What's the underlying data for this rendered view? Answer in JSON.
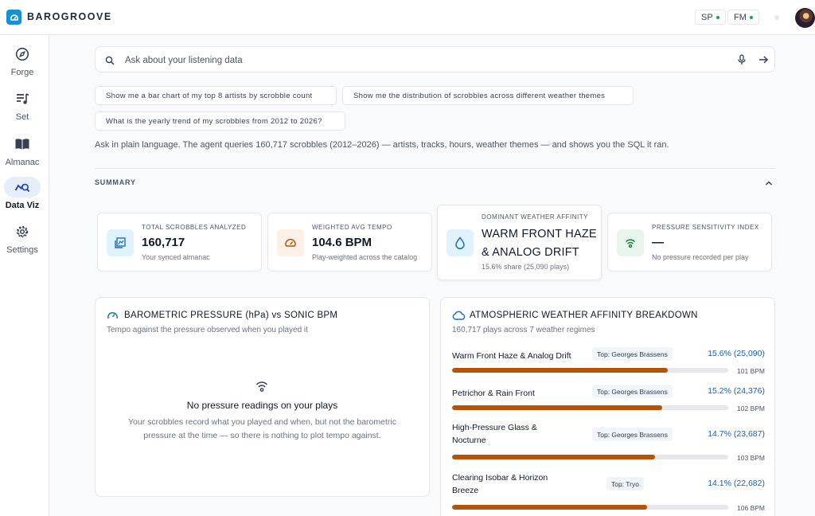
{
  "app": {
    "name": "BAROGROOVE"
  },
  "header": {
    "services": [
      {
        "label": "SP",
        "status_color": "#16a34a"
      },
      {
        "label": "FM",
        "status_color": "#16a34a"
      }
    ]
  },
  "sidebar": {
    "items": [
      {
        "label": "Forge",
        "icon": "compass-icon",
        "active": false
      },
      {
        "label": "Set",
        "icon": "playlist-icon",
        "active": false
      },
      {
        "label": "Almanac",
        "icon": "book-icon",
        "active": false
      },
      {
        "label": "Data Viz",
        "icon": "chart-search-icon",
        "active": true
      },
      {
        "label": "Settings",
        "icon": "gear-icon",
        "active": false
      }
    ]
  },
  "search": {
    "placeholder": "Ask about your listening data",
    "value": ""
  },
  "suggestions": [
    "Show me a bar chart of my top 8 artists by scrobble count",
    "Show me the distribution of scrobbles across different weather themes",
    "What is the yearly trend of my scrobbles from 2012 to 2026?"
  ],
  "intro": "Ask in plain language. The agent queries 160,717 scrobbles (2012–2026) — artists, tracks, hours, weather themes — and shows you the SQL it ran.",
  "summary": {
    "label": "SUMMARY",
    "cards": [
      {
        "label": "TOTAL SCROBBLES ANALYZED",
        "value": "160,717",
        "sub": "Your synced almanac",
        "icon": "library-icon",
        "accent": "#e0f2fe"
      },
      {
        "label": "WEIGHTED AVG TEMPO",
        "value": "104.6 BPM",
        "sub": "Play-weighted across the catalog",
        "icon": "gauge-icon",
        "accent": "#fdf0e6"
      },
      {
        "label": "DOMINANT WEATHER AFFINITY",
        "value": "WARM FRONT HAZE & ANALOG DRIFT",
        "sub": "15.6% share (25,090 plays)",
        "icon": "droplet-icon",
        "accent": "#e0f2fe"
      },
      {
        "label": "PRESSURE SENSITIVITY INDEX",
        "value": "—",
        "sub": "No pressure recorded per play",
        "icon": "signal-icon",
        "accent": "#e7f5ec"
      }
    ]
  },
  "pressure_panel": {
    "title": "BAROMETRIC PRESSURE (hPa) vs SONIC BPM",
    "subtitle": "Tempo against the pressure observed when you played it",
    "empty_title": "No pressure readings on your plays",
    "empty_body": "Your scrobbles record what you played and when, but not the barometric pressure at the time — so there is nothing to plot tempo against."
  },
  "weather_panel": {
    "title": "ATMOSPHERIC WEATHER AFFINITY BREAKDOWN",
    "subtitle": "160,717 plays across 7 weather regimes",
    "rows": [
      {
        "name": "Warm Front Haze & Analog Drift",
        "top": "Top: Georges Brassens",
        "pct": "15.6% (25,090)",
        "share": 0.156,
        "bpm": "101 BPM"
      },
      {
        "name": "Petrichor & Rain Front",
        "top": "Top: Georges Brassens",
        "pct": "15.2% (24,376)",
        "share": 0.152,
        "bpm": "102 BPM"
      },
      {
        "name": "High-Pressure Glass & Nocturne",
        "top": "Top: Georges Brassens",
        "pct": "14.7% (23,687)",
        "share": 0.147,
        "bpm": "103 BPM"
      },
      {
        "name": "Clearing Isobar & Horizon Breeze",
        "top": "Top: Tryo",
        "pct": "14.1% (22,682)",
        "share": 0.141,
        "bpm": "106 BPM"
      }
    ]
  }
}
